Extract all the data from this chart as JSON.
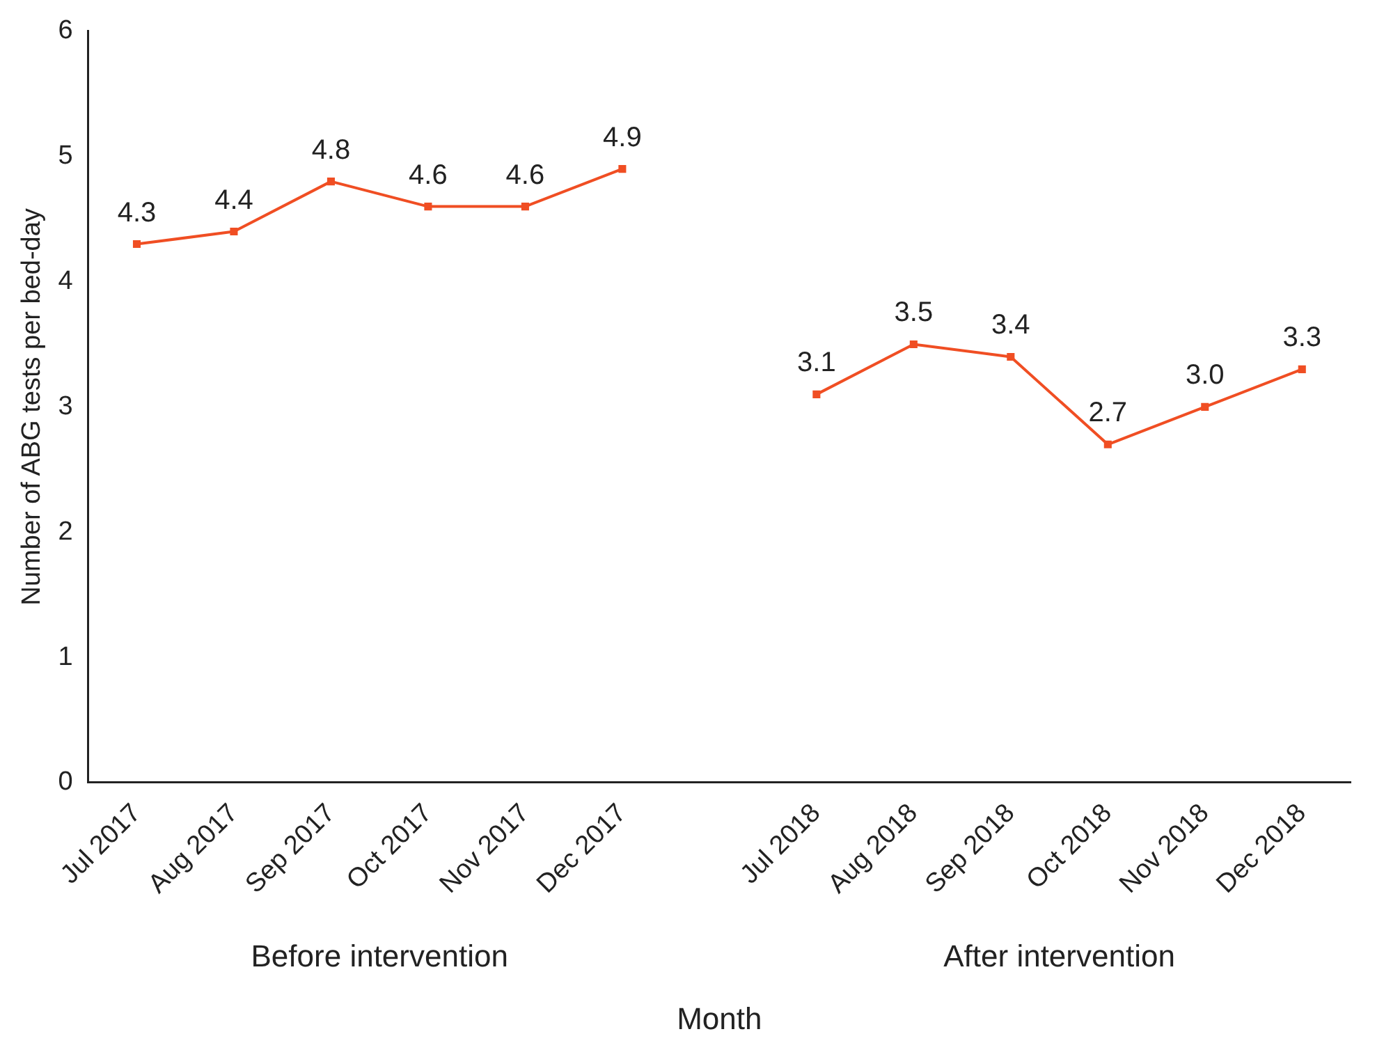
{
  "chart_data": {
    "type": "line",
    "xlabel": "Month",
    "ylabel": "Number of ABG tests per bed-day",
    "categories": [
      "Jul 2017",
      "Aug 2017",
      "Sep 2017",
      "Oct 2017",
      "Nov 2017",
      "Dec 2017",
      null,
      "Jul 2018",
      "Aug 2018",
      "Sep 2018",
      "Oct 2018",
      "Nov 2018",
      "Dec 2018"
    ],
    "series": [
      {
        "color": "#f04e23",
        "values": [
          4.3,
          4.4,
          4.8,
          4.6,
          4.6,
          4.9,
          null,
          3.1,
          3.5,
          3.4,
          2.7,
          3.0,
          3.3
        ],
        "value_labels": [
          "4.3",
          "4.4",
          "4.8",
          "4.6",
          "4.6",
          "4.9",
          null,
          "3.1",
          "3.5",
          "3.4",
          "2.7",
          "3.0",
          "3.3"
        ]
      }
    ],
    "ylim": [
      0,
      6
    ],
    "yticks": [
      0,
      1,
      2,
      3,
      4,
      5,
      6
    ],
    "grid": false,
    "legend": false,
    "marker": "square",
    "line_style": "solid",
    "annotations": [
      "Before intervention",
      "After intervention"
    ]
  }
}
